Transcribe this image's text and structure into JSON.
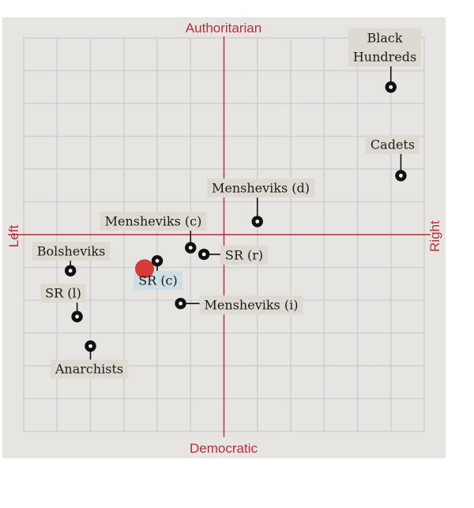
{
  "chart_data": {
    "type": "scatter",
    "title": "",
    "xlabel_left": "Left",
    "xlabel_right": "Right",
    "ylabel_top": "Authoritarian",
    "ylabel_bottom": "Democratic",
    "xlim": [
      -6,
      6
    ],
    "ylim": [
      -6,
      6
    ],
    "grid": true,
    "colors": {
      "panel": "#e7e5e2",
      "grid": "#cfcfcf",
      "axis": "#b5303d",
      "label_box": "#dedad2",
      "label_box_highlight": "#cddfe4",
      "highlight_marker": "#d63a3a",
      "marker": "#111111"
    },
    "points": [
      {
        "name": "Black\nHundreds",
        "x": 5.0,
        "y": 4.5
      },
      {
        "name": "Cadets",
        "x": 5.3,
        "y": 1.8
      },
      {
        "name": "Mensheviks (d)",
        "x": 1.0,
        "y": 0.4
      },
      {
        "name": "Mensheviks (c)",
        "x": -1.0,
        "y": -0.4
      },
      {
        "name": "SR (r)",
        "x": -0.6,
        "y": -0.6
      },
      {
        "name": "SR (c)",
        "x": -2.0,
        "y": -0.8,
        "highlight": true
      },
      {
        "name": "Bolsheviks",
        "x": -4.6,
        "y": -1.1
      },
      {
        "name": "Mensheviks (i)",
        "x": -1.3,
        "y": -2.1
      },
      {
        "name": "SR (l)",
        "x": -4.4,
        "y": -2.5
      },
      {
        "name": "Anarchists",
        "x": -4.0,
        "y": -3.4
      }
    ]
  }
}
